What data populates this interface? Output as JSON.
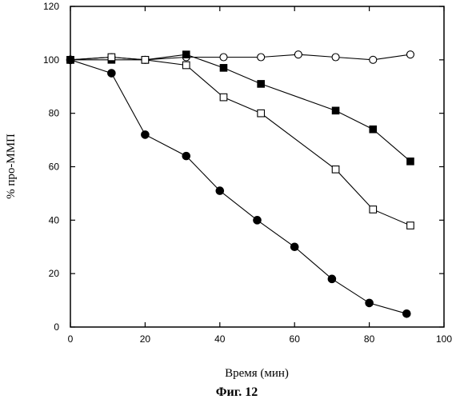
{
  "chart_data": {
    "type": "scatter",
    "xlabel": "Время (мин)",
    "ylabel": "% про-ММП",
    "caption": "Фиг. 12",
    "xlim": [
      0,
      100
    ],
    "ylim": [
      0,
      120
    ],
    "xticks": [
      0,
      20,
      40,
      60,
      80,
      100
    ],
    "yticks": [
      0,
      20,
      40,
      60,
      80,
      100,
      120
    ],
    "grid": false,
    "series": [
      {
        "marker": "open-circle",
        "color": "#000000",
        "x": [
          0,
          11,
          20,
          31,
          41,
          51,
          61,
          71,
          81,
          91
        ],
        "y": [
          100,
          101,
          100,
          101,
          101,
          101,
          102,
          101,
          100,
          102
        ]
      },
      {
        "marker": "filled-square",
        "color": "#000000",
        "x": [
          0,
          11,
          20,
          31,
          41,
          51,
          71,
          81,
          91
        ],
        "y": [
          100,
          100,
          100,
          102,
          97,
          91,
          81,
          74,
          62
        ]
      },
      {
        "marker": "open-square",
        "color": "#000000",
        "x": [
          0,
          11,
          20,
          31,
          41,
          51,
          71,
          81,
          91
        ],
        "y": [
          100,
          101,
          100,
          98,
          86,
          80,
          59,
          44,
          38
        ]
      },
      {
        "marker": "filled-circle",
        "color": "#000000",
        "x": [
          0,
          11,
          20,
          31,
          40,
          50,
          60,
          70,
          80,
          90
        ],
        "y": [
          100,
          95,
          72,
          64,
          51,
          40,
          30,
          18,
          9,
          5
        ]
      }
    ]
  }
}
